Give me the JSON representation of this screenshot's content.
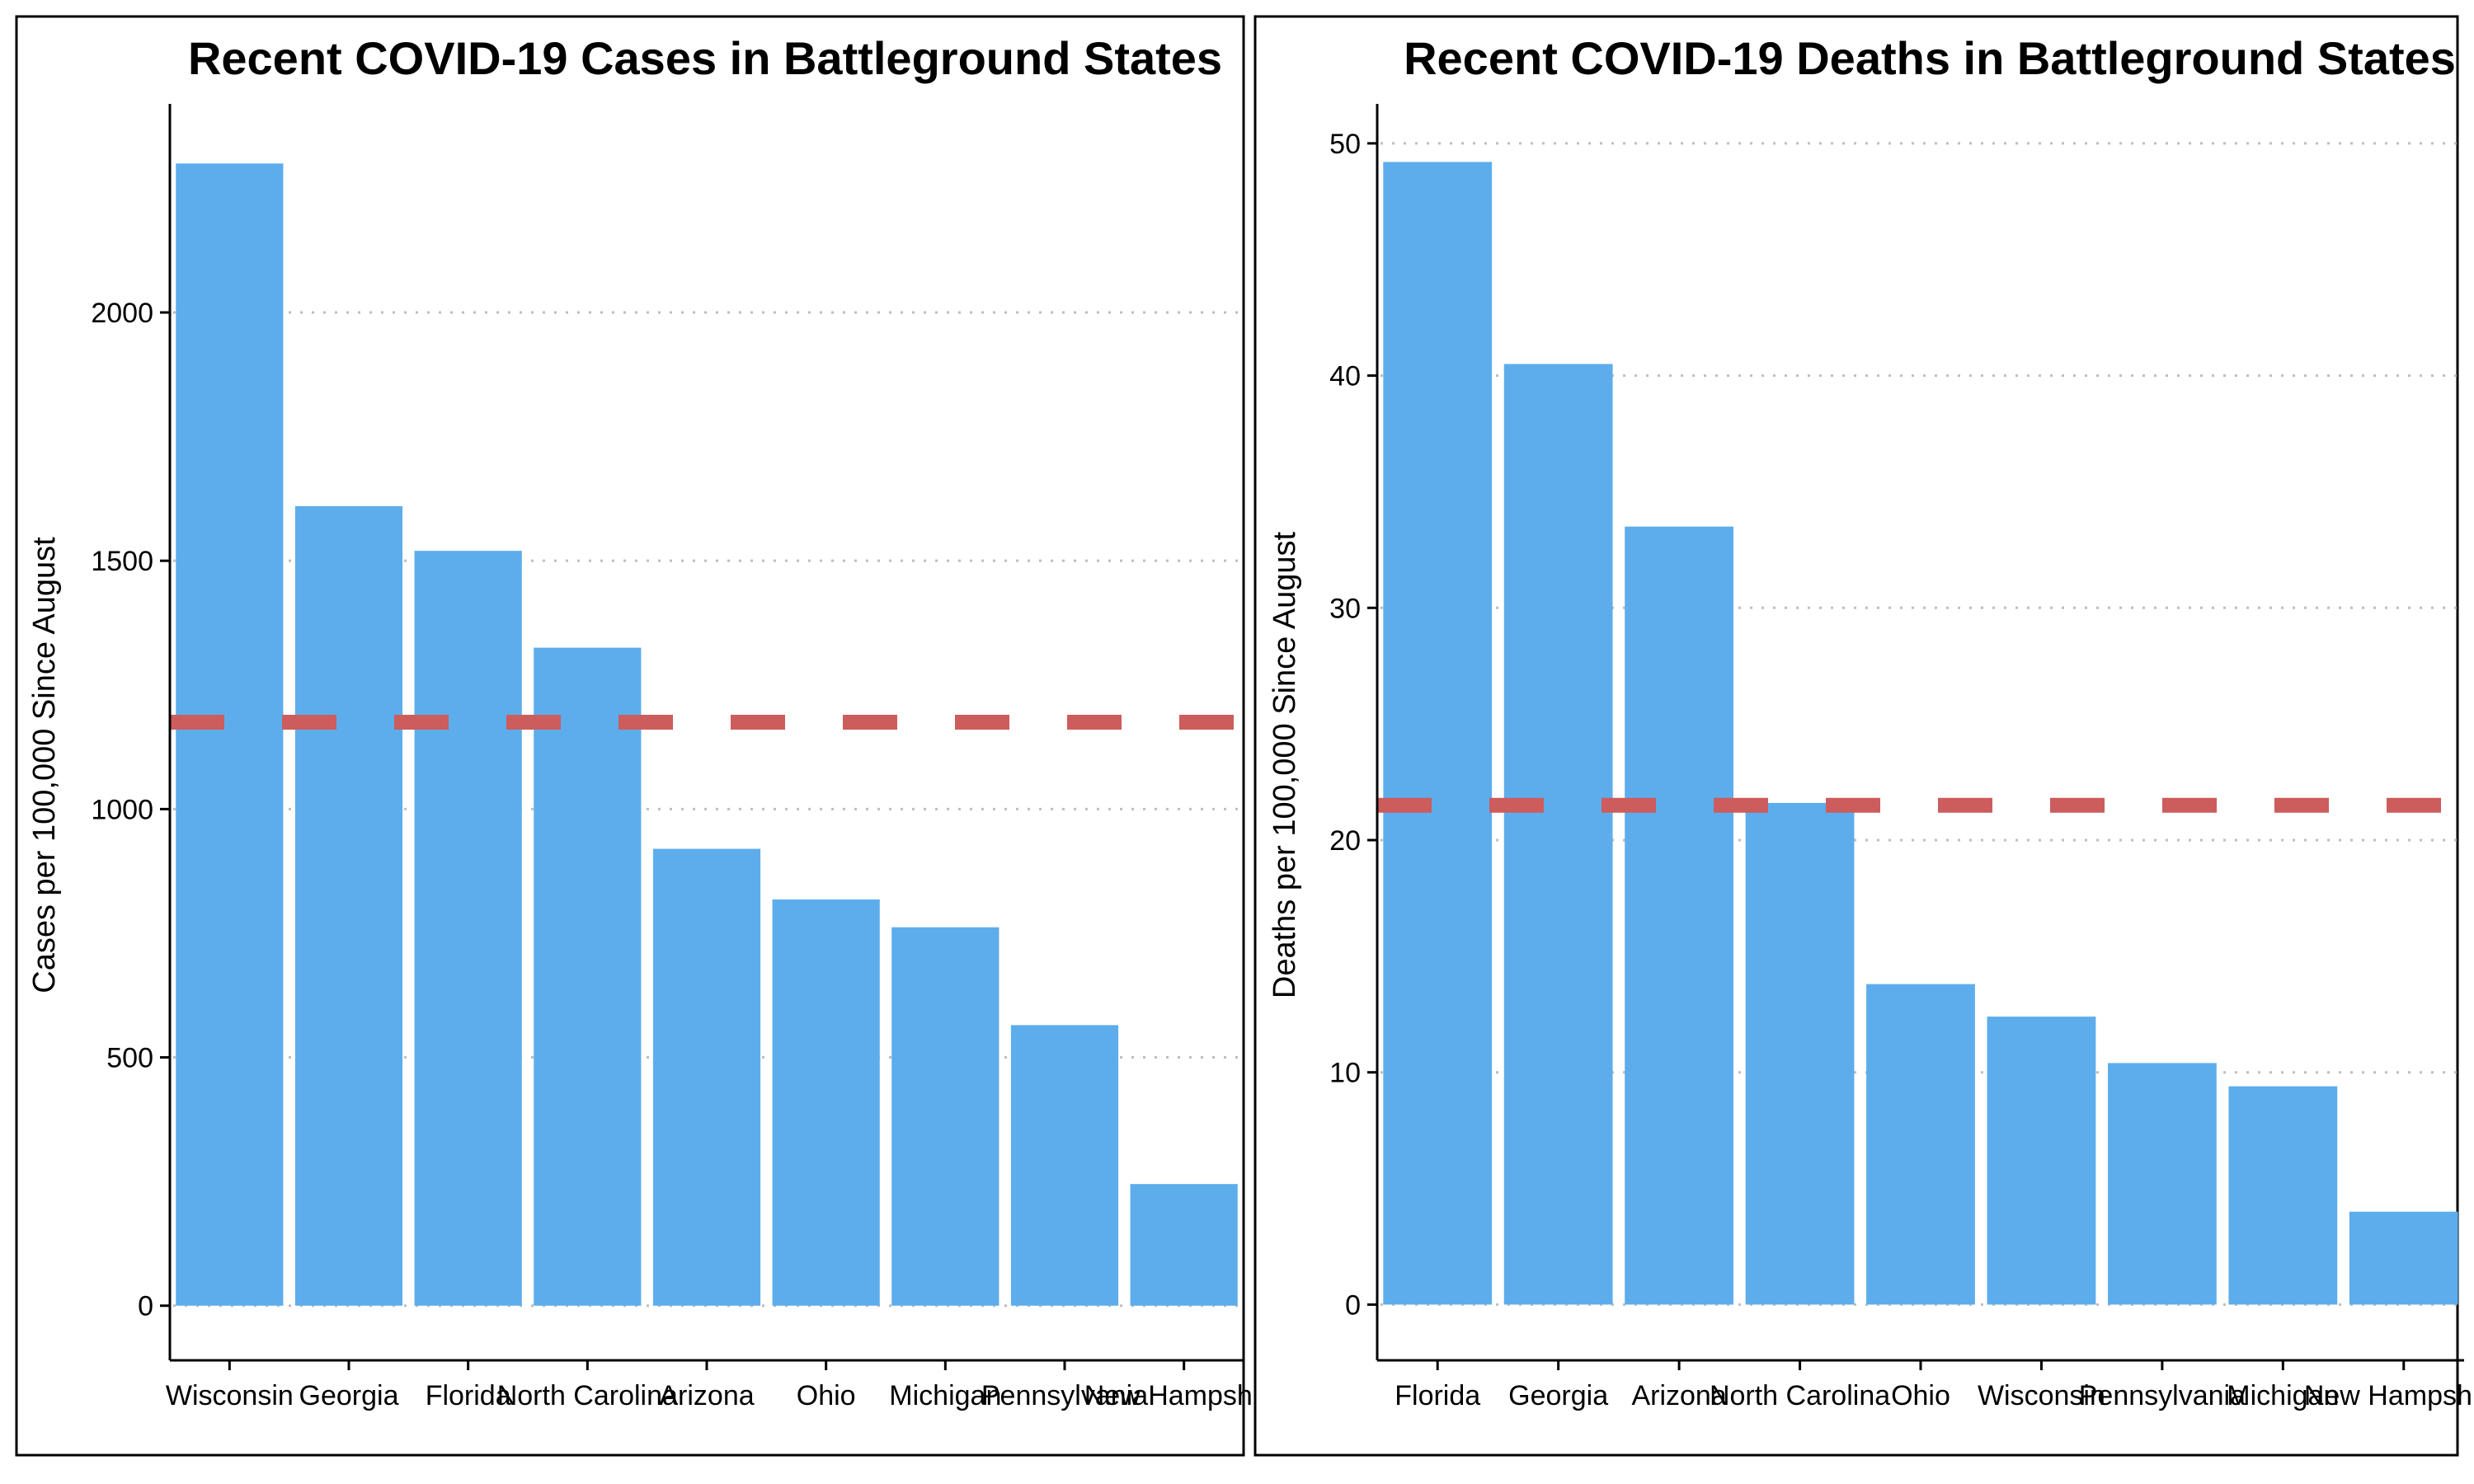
{
  "colors": {
    "bar": "#5DADEC",
    "reference_line": "#CD5C5C",
    "grid": "#BEBEBE",
    "axis": "#000000",
    "border": "#000000"
  },
  "chart_data": [
    {
      "type": "bar",
      "title": "Recent COVID-19 Cases in Battleground States",
      "xlabel": "",
      "ylabel": "Cases per 100,000 Since August",
      "categories": [
        "Wisconsin",
        "Georgia",
        "Florida",
        "North Carolina",
        "Arizona",
        "Ohio",
        "Michigan",
        "Pennsylvania",
        "New Hampshire"
      ],
      "values": [
        2300,
        1610,
        1520,
        1325,
        920,
        818,
        762,
        565,
        245
      ],
      "ylim": [
        -110,
        2420
      ],
      "yticks": [
        0,
        500,
        1000,
        1500,
        2000
      ],
      "reference_line": {
        "y": 1175,
        "style": "dashed"
      },
      "grid": "horizontal dotted",
      "legend": "none"
    },
    {
      "type": "bar",
      "title": "Recent COVID-19 Deaths in Battleground States",
      "xlabel": "",
      "ylabel": "Deaths per 100,000 Since August",
      "categories": [
        "Florida",
        "Georgia",
        "Arizona",
        "North Carolina",
        "Ohio",
        "Wisconsin",
        "Pennsylvania",
        "Michigan",
        "New Hampshire"
      ],
      "values": [
        49.2,
        40.5,
        33.5,
        21.6,
        13.8,
        12.4,
        10.4,
        9.4,
        4.0
      ],
      "ylim": [
        -2.4,
        51.7
      ],
      "yticks": [
        0,
        10,
        20,
        30,
        40,
        50
      ],
      "reference_line": {
        "y": 21.5,
        "style": "dashed"
      },
      "grid": "horizontal dotted",
      "legend": "none"
    }
  ]
}
